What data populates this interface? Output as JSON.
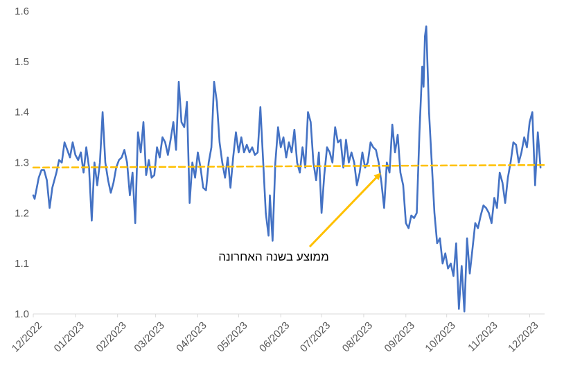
{
  "chart_data": {
    "type": "line",
    "title": "",
    "xlabel": "",
    "ylabel": "",
    "ylim": [
      1.0,
      1.6
    ],
    "y_ticks": [
      "1.0",
      "1.1",
      "1.2",
      "1.3",
      "1.4",
      "1.5",
      "1.6"
    ],
    "x_ticks": [
      "12/2022",
      "01/2023",
      "02/2023",
      "03/2023",
      "04/2023",
      "05/2023",
      "06/2023",
      "07/2023",
      "08/2023",
      "09/2023",
      "10/2023",
      "11/2023",
      "12/2023"
    ],
    "grid": false,
    "legend": "none",
    "series": [
      {
        "color": "#4472C4",
        "points": [
          [
            "2022-12-01",
            1.235
          ],
          [
            "2022-12-02",
            1.228
          ],
          [
            "2022-12-05",
            1.27
          ],
          [
            "2022-12-07",
            1.285
          ],
          [
            "2022-12-09",
            1.285
          ],
          [
            "2022-12-11",
            1.265
          ],
          [
            "2022-12-13",
            1.21
          ],
          [
            "2022-12-15",
            1.25
          ],
          [
            "2022-12-18",
            1.28
          ],
          [
            "2022-12-20",
            1.305
          ],
          [
            "2022-12-22",
            1.3
          ],
          [
            "2022-12-24",
            1.34
          ],
          [
            "2022-12-26",
            1.325
          ],
          [
            "2022-12-28",
            1.31
          ],
          [
            "2022-12-30",
            1.34
          ],
          [
            "2023-01-01",
            1.315
          ],
          [
            "2023-01-03",
            1.305
          ],
          [
            "2023-01-05",
            1.32
          ],
          [
            "2023-01-07",
            1.28
          ],
          [
            "2023-01-09",
            1.33
          ],
          [
            "2023-01-11",
            1.29
          ],
          [
            "2023-01-13",
            1.185
          ],
          [
            "2023-01-15",
            1.3
          ],
          [
            "2023-01-17",
            1.255
          ],
          [
            "2023-01-19",
            1.3
          ],
          [
            "2023-01-21",
            1.4
          ],
          [
            "2023-01-23",
            1.3
          ],
          [
            "2023-01-25",
            1.265
          ],
          [
            "2023-01-27",
            1.24
          ],
          [
            "2023-01-29",
            1.26
          ],
          [
            "2023-01-31",
            1.29
          ],
          [
            "2023-02-02",
            1.305
          ],
          [
            "2023-02-04",
            1.31
          ],
          [
            "2023-02-06",
            1.325
          ],
          [
            "2023-02-08",
            1.3
          ],
          [
            "2023-02-10",
            1.235
          ],
          [
            "2023-02-12",
            1.28
          ],
          [
            "2023-02-14",
            1.18
          ],
          [
            "2023-02-16",
            1.36
          ],
          [
            "2023-02-18",
            1.32
          ],
          [
            "2023-02-20",
            1.38
          ],
          [
            "2023-02-22",
            1.275
          ],
          [
            "2023-02-24",
            1.305
          ],
          [
            "2023-02-26",
            1.27
          ],
          [
            "2023-02-28",
            1.275
          ],
          [
            "2023-03-02",
            1.33
          ],
          [
            "2023-03-04",
            1.31
          ],
          [
            "2023-03-06",
            1.35
          ],
          [
            "2023-03-08",
            1.34
          ],
          [
            "2023-03-10",
            1.315
          ],
          [
            "2023-03-12",
            1.345
          ],
          [
            "2023-03-14",
            1.38
          ],
          [
            "2023-03-16",
            1.325
          ],
          [
            "2023-03-18",
            1.46
          ],
          [
            "2023-03-20",
            1.38
          ],
          [
            "2023-03-22",
            1.37
          ],
          [
            "2023-03-24",
            1.42
          ],
          [
            "2023-03-26",
            1.22
          ],
          [
            "2023-03-28",
            1.3
          ],
          [
            "2023-03-30",
            1.27
          ],
          [
            "2023-04-01",
            1.32
          ],
          [
            "2023-04-03",
            1.29
          ],
          [
            "2023-04-05",
            1.25
          ],
          [
            "2023-04-07",
            1.245
          ],
          [
            "2023-04-09",
            1.3
          ],
          [
            "2023-04-11",
            1.33
          ],
          [
            "2023-04-13",
            1.46
          ],
          [
            "2023-04-15",
            1.42
          ],
          [
            "2023-04-17",
            1.34
          ],
          [
            "2023-04-19",
            1.3
          ],
          [
            "2023-04-21",
            1.27
          ],
          [
            "2023-04-23",
            1.31
          ],
          [
            "2023-04-25",
            1.25
          ],
          [
            "2023-04-27",
            1.31
          ],
          [
            "2023-04-29",
            1.36
          ],
          [
            "2023-05-01",
            1.32
          ],
          [
            "2023-05-03",
            1.35
          ],
          [
            "2023-05-05",
            1.32
          ],
          [
            "2023-05-07",
            1.335
          ],
          [
            "2023-05-09",
            1.32
          ],
          [
            "2023-05-11",
            1.33
          ],
          [
            "2023-05-13",
            1.315
          ],
          [
            "2023-05-15",
            1.32
          ],
          [
            "2023-05-17",
            1.41
          ],
          [
            "2023-05-19",
            1.305
          ],
          [
            "2023-05-21",
            1.2
          ],
          [
            "2023-05-23",
            1.155
          ],
          [
            "2023-05-24",
            1.235
          ],
          [
            "2023-05-26",
            1.145
          ],
          [
            "2023-05-28",
            1.3
          ],
          [
            "2023-05-30",
            1.37
          ],
          [
            "2023-06-01",
            1.33
          ],
          [
            "2023-06-03",
            1.35
          ],
          [
            "2023-06-05",
            1.31
          ],
          [
            "2023-06-07",
            1.34
          ],
          [
            "2023-06-09",
            1.32
          ],
          [
            "2023-06-11",
            1.365
          ],
          [
            "2023-06-13",
            1.3
          ],
          [
            "2023-06-15",
            1.28
          ],
          [
            "2023-06-17",
            1.33
          ],
          [
            "2023-06-19",
            1.29
          ],
          [
            "2023-06-21",
            1.4
          ],
          [
            "2023-06-23",
            1.38
          ],
          [
            "2023-06-25",
            1.3
          ],
          [
            "2023-06-27",
            1.265
          ],
          [
            "2023-06-29",
            1.32
          ],
          [
            "2023-07-01",
            1.2
          ],
          [
            "2023-07-03",
            1.275
          ],
          [
            "2023-07-05",
            1.33
          ],
          [
            "2023-07-07",
            1.32
          ],
          [
            "2023-07-09",
            1.3
          ],
          [
            "2023-07-11",
            1.37
          ],
          [
            "2023-07-13",
            1.34
          ],
          [
            "2023-07-15",
            1.345
          ],
          [
            "2023-07-17",
            1.29
          ],
          [
            "2023-07-19",
            1.345
          ],
          [
            "2023-07-21",
            1.3
          ],
          [
            "2023-07-23",
            1.32
          ],
          [
            "2023-07-25",
            1.3
          ],
          [
            "2023-07-27",
            1.255
          ],
          [
            "2023-07-29",
            1.28
          ],
          [
            "2023-07-31",
            1.32
          ],
          [
            "2023-08-02",
            1.29
          ],
          [
            "2023-08-04",
            1.3
          ],
          [
            "2023-08-06",
            1.34
          ],
          [
            "2023-08-08",
            1.33
          ],
          [
            "2023-08-10",
            1.325
          ],
          [
            "2023-08-12",
            1.3
          ],
          [
            "2023-08-14",
            1.26
          ],
          [
            "2023-08-16",
            1.21
          ],
          [
            "2023-08-18",
            1.3
          ],
          [
            "2023-08-20",
            1.28
          ],
          [
            "2023-08-22",
            1.375
          ],
          [
            "2023-08-24",
            1.32
          ],
          [
            "2023-08-26",
            1.355
          ],
          [
            "2023-08-28",
            1.28
          ],
          [
            "2023-08-30",
            1.255
          ],
          [
            "2023-09-01",
            1.18
          ],
          [
            "2023-09-03",
            1.17
          ],
          [
            "2023-09-05",
            1.195
          ],
          [
            "2023-09-07",
            1.19
          ],
          [
            "2023-09-09",
            1.2
          ],
          [
            "2023-09-11",
            1.36
          ],
          [
            "2023-09-13",
            1.49
          ],
          [
            "2023-09-14",
            1.45
          ],
          [
            "2023-09-15",
            1.55
          ],
          [
            "2023-09-16",
            1.57
          ],
          [
            "2023-09-18",
            1.4
          ],
          [
            "2023-09-20",
            1.3
          ],
          [
            "2023-09-22",
            1.2
          ],
          [
            "2023-09-24",
            1.14
          ],
          [
            "2023-09-26",
            1.15
          ],
          [
            "2023-09-28",
            1.1
          ],
          [
            "2023-09-30",
            1.12
          ],
          [
            "2023-10-02",
            1.09
          ],
          [
            "2023-10-04",
            1.1
          ],
          [
            "2023-10-06",
            1.075
          ],
          [
            "2023-10-08",
            1.14
          ],
          [
            "2023-10-10",
            1.01
          ],
          [
            "2023-10-12",
            1.095
          ],
          [
            "2023-10-14",
            1.005
          ],
          [
            "2023-10-16",
            1.15
          ],
          [
            "2023-10-18",
            1.08
          ],
          [
            "2023-10-20",
            1.13
          ],
          [
            "2023-10-22",
            1.18
          ],
          [
            "2023-10-24",
            1.17
          ],
          [
            "2023-10-26",
            1.195
          ],
          [
            "2023-10-28",
            1.215
          ],
          [
            "2023-10-30",
            1.21
          ],
          [
            "2023-11-01",
            1.2
          ],
          [
            "2023-11-03",
            1.18
          ],
          [
            "2023-11-05",
            1.23
          ],
          [
            "2023-11-07",
            1.21
          ],
          [
            "2023-11-09",
            1.28
          ],
          [
            "2023-11-11",
            1.26
          ],
          [
            "2023-11-13",
            1.22
          ],
          [
            "2023-11-15",
            1.27
          ],
          [
            "2023-11-17",
            1.3
          ],
          [
            "2023-11-19",
            1.34
          ],
          [
            "2023-11-21",
            1.335
          ],
          [
            "2023-11-23",
            1.3
          ],
          [
            "2023-11-25",
            1.32
          ],
          [
            "2023-11-27",
            1.35
          ],
          [
            "2023-11-29",
            1.33
          ],
          [
            "2023-12-01",
            1.38
          ],
          [
            "2023-12-03",
            1.4
          ],
          [
            "2023-12-05",
            1.255
          ],
          [
            "2023-12-07",
            1.36
          ],
          [
            "2023-12-09",
            1.29
          ]
        ]
      },
      {
        "color": "#FFC000",
        "dashed": true,
        "points": [
          [
            "2022-12-01",
            1.29
          ],
          [
            "2023-12-12",
            1.295
          ]
        ]
      }
    ],
    "annotations": [
      {
        "text": "ממוצע בשנה האחרונה",
        "color": "#FFC000",
        "arrow_to": [
          "2023-08-15",
          1.29
        ]
      }
    ]
  }
}
